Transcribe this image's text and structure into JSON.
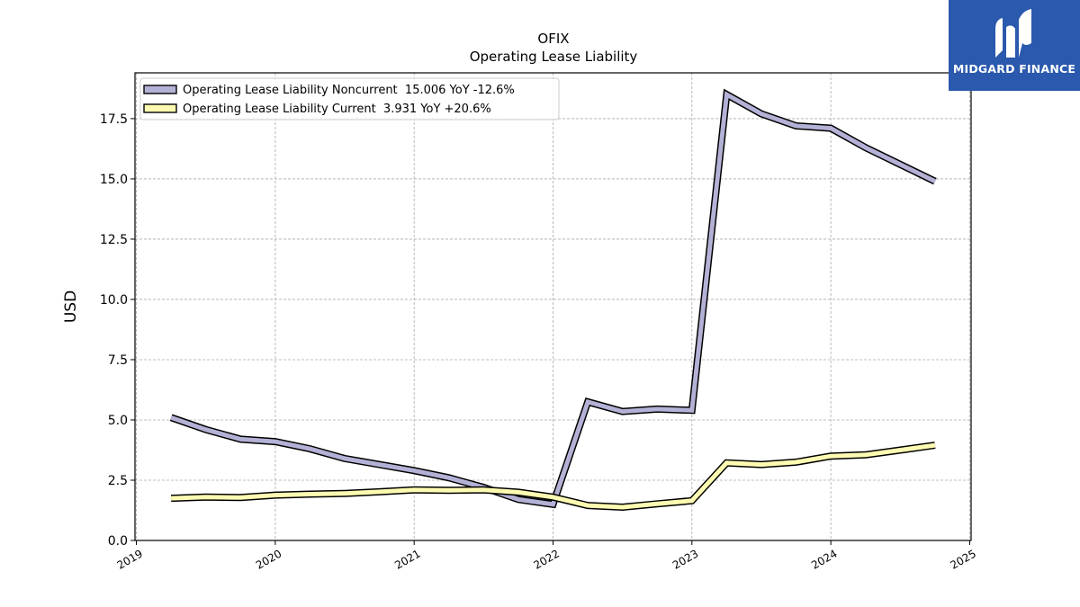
{
  "brand": {
    "name": "MIDGARD FINANCE",
    "bg_color": "#2a59ad",
    "fg_color": "#ffffff"
  },
  "chart_data": {
    "type": "line",
    "title": "OFIX",
    "subtitle": "Operating Lease Liability",
    "xlabel": "",
    "ylabel": "USD",
    "xlim": [
      2018.99,
      2025.01
    ],
    "ylim": [
      0,
      19.4
    ],
    "x_ticks": [
      2019,
      2020,
      2021,
      2022,
      2023,
      2024,
      2025
    ],
    "x_tick_labels": [
      "2019",
      "2020",
      "2021",
      "2022",
      "2023",
      "2024",
      "2025"
    ],
    "y_ticks": [
      0,
      2.5,
      5,
      7.5,
      10,
      12.5,
      15,
      17.5
    ],
    "y_tick_labels": [
      "0.0",
      "2.5",
      "5.0",
      "7.5",
      "10.0",
      "12.5",
      "15.0",
      "17.5"
    ],
    "grid": true,
    "legend_position": "top-left",
    "series": [
      {
        "name": "Operating Lease Liability Noncurrent  15.006 YoY -12.6%",
        "color": "#b4b1d6",
        "x": [
          2019.25,
          2019.5,
          2019.75,
          2020.0,
          2020.25,
          2020.5,
          2020.75,
          2021.0,
          2021.25,
          2021.5,
          2021.75,
          2022.0,
          2022.25,
          2022.5,
          2022.75,
          2023.0,
          2023.25,
          2023.5,
          2023.75,
          2024.0,
          2024.25,
          2024.5,
          2024.75
        ],
        "values": [
          5.1,
          4.6,
          4.2,
          4.1,
          3.8,
          3.4,
          3.15,
          2.9,
          2.6,
          2.2,
          1.7,
          1.5,
          5.75,
          5.35,
          5.45,
          5.4,
          18.5,
          17.7,
          17.2,
          17.1,
          16.3,
          15.6,
          14.9
        ]
      },
      {
        "name": "Operating Lease Liability Current  3.931 YoY +20.6%",
        "color": "#fdfbb2",
        "x": [
          2019.25,
          2019.5,
          2019.75,
          2020.0,
          2020.25,
          2020.5,
          2020.75,
          2021.0,
          2021.25,
          2021.5,
          2021.75,
          2022.0,
          2022.25,
          2022.5,
          2022.75,
          2023.0,
          2023.25,
          2023.5,
          2023.75,
          2024.0,
          2024.25,
          2024.5,
          2024.75
        ],
        "values": [
          1.75,
          1.8,
          1.78,
          1.88,
          1.92,
          1.95,
          2.02,
          2.1,
          2.08,
          2.1,
          2.0,
          1.8,
          1.45,
          1.38,
          1.52,
          1.65,
          3.22,
          3.15,
          3.25,
          3.5,
          3.55,
          3.75,
          3.95
        ]
      }
    ]
  }
}
